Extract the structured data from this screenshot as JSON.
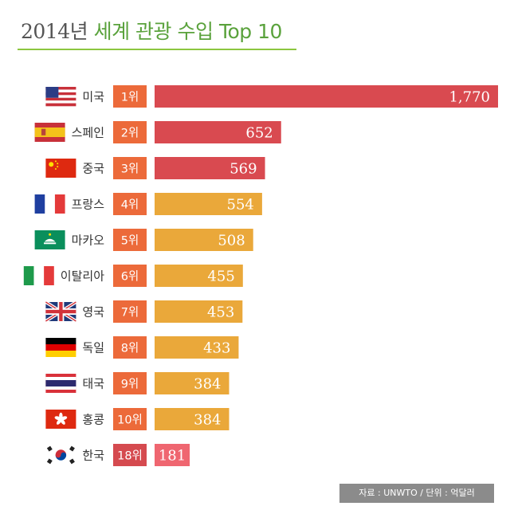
{
  "title": {
    "year": "2014년",
    "highlight_1": "세계 관광 수입",
    "highlight_2": "Top 10"
  },
  "source": "자료 : UNWTO  /  단위 : 억달러",
  "colors": {
    "red": "#d94a50",
    "orange": "#eaa83a",
    "rank_badge": "#ec6a3a",
    "korea_rank_badge": "#d54a4f",
    "korea_bar": "#ef6670",
    "title_highlight": "#5aa23c"
  },
  "chart_data": {
    "type": "bar",
    "orientation": "horizontal",
    "title": "2014년 세계 관광 수입 Top 10",
    "categories": [
      "미국",
      "스페인",
      "중국",
      "프랑스",
      "마카오",
      "이탈리아",
      "영국",
      "독일",
      "태국",
      "홍콩",
      "한국"
    ],
    "ranks": [
      "1위",
      "2위",
      "3위",
      "4위",
      "5위",
      "6위",
      "7위",
      "8위",
      "9위",
      "10위",
      "18위"
    ],
    "values": [
      1770,
      652,
      569,
      554,
      508,
      455,
      453,
      433,
      384,
      384,
      181
    ],
    "value_labels": [
      "1,770",
      "652",
      "569",
      "554",
      "508",
      "455",
      "453",
      "433",
      "384",
      "384",
      "181"
    ],
    "bar_colors": [
      "red",
      "red",
      "red",
      "orange",
      "orange",
      "orange",
      "orange",
      "orange",
      "orange",
      "orange",
      "korea"
    ],
    "flag_icons": [
      "us-flag-icon",
      "spain-flag-icon",
      "china-flag-icon",
      "france-flag-icon",
      "macau-flag-icon",
      "italy-flag-icon",
      "uk-flag-icon",
      "germany-flag-icon",
      "thailand-flag-icon",
      "hongkong-flag-icon",
      "korea-flag-icon"
    ],
    "unit": "억달러",
    "xlim": [
      0,
      1770
    ],
    "grid": false,
    "legend": "none"
  }
}
